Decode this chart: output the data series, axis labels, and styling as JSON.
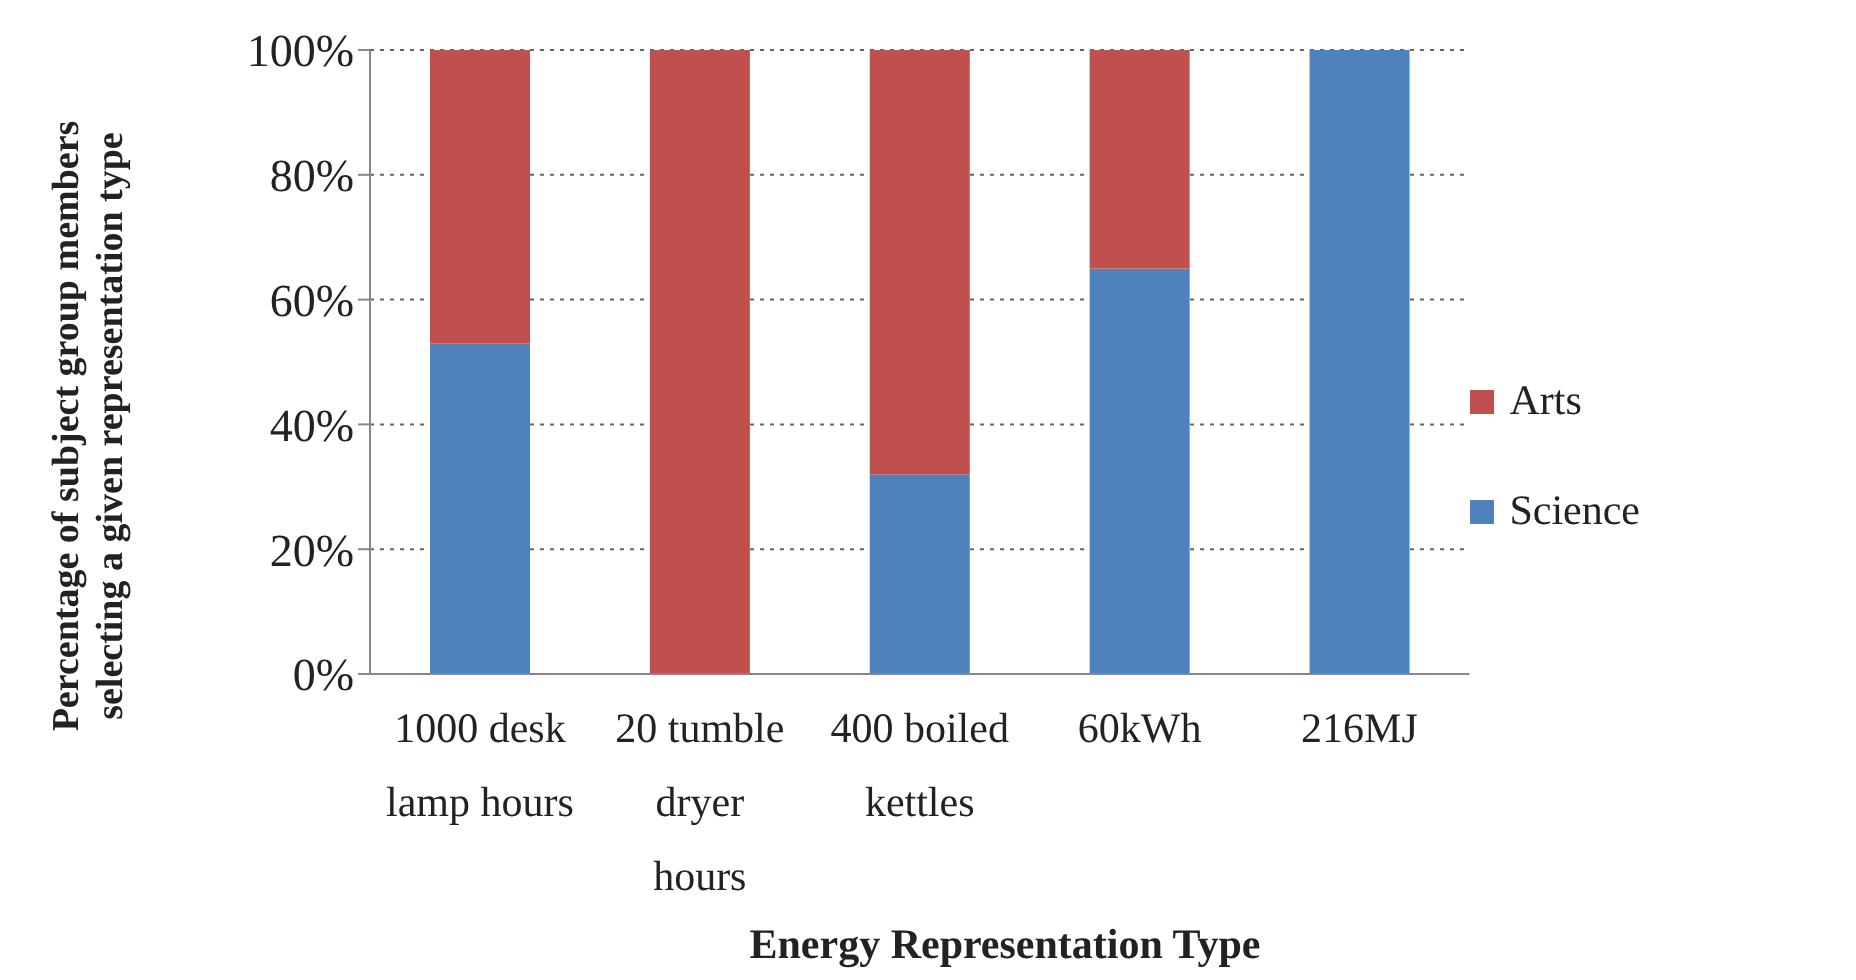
{
  "chart_data": {
    "type": "bar",
    "stacked": true,
    "xlabel": "Energy Representation Type",
    "ylabel": "Percentage of subject group members selecting a given representation type",
    "categories": [
      "1000 desk lamp hours",
      "20 tumble dryer hours",
      "400 boiled kettles",
      "60kWh",
      "216MJ"
    ],
    "series": [
      {
        "name": "Science",
        "color": "#4f81bd",
        "values": [
          53,
          0,
          32,
          65,
          100
        ]
      },
      {
        "name": "Arts",
        "color": "#c0504d",
        "values": [
          47,
          100,
          68,
          35,
          0
        ]
      }
    ],
    "ylim": [
      0,
      100
    ],
    "yticks": [
      {
        "value": 0,
        "label": "0%"
      },
      {
        "value": 20,
        "label": "20%"
      },
      {
        "value": 40,
        "label": "40%"
      },
      {
        "value": 60,
        "label": "60%"
      },
      {
        "value": 80,
        "label": "80%"
      },
      {
        "value": 100,
        "label": "100%"
      }
    ],
    "grid": "y",
    "legend": "right"
  }
}
